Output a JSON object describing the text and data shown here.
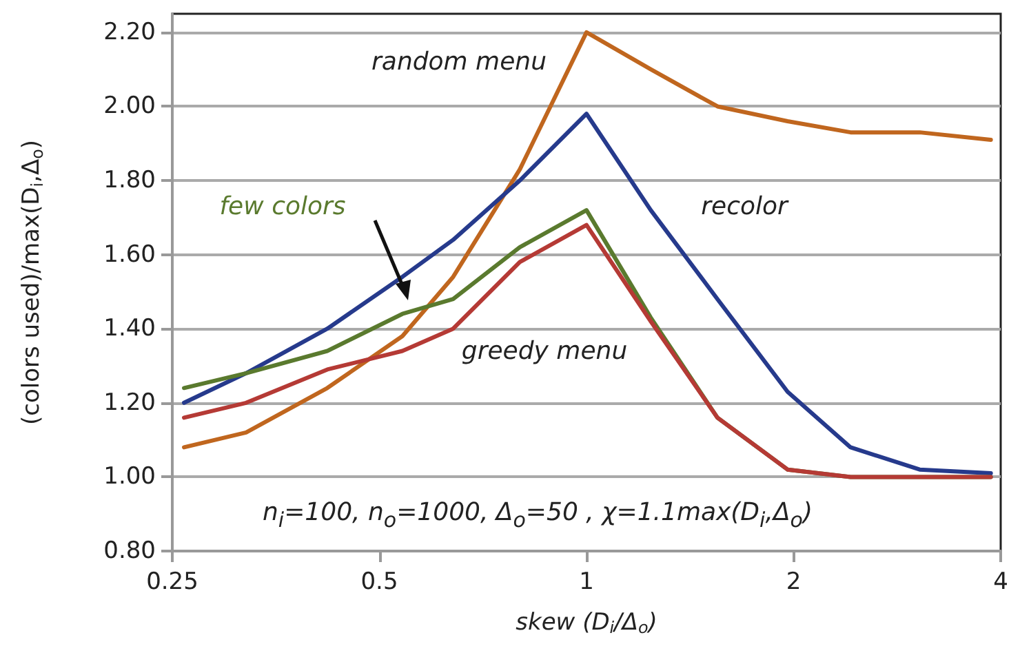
{
  "chart_data": {
    "type": "line",
    "xlabel": "skew (D$_{i}$/Δ$_{o}$)",
    "ylabel": "(colors used)/max(D$_{i}$,Δ$_{o}$)",
    "x": [
      0.26,
      0.32,
      0.42,
      0.54,
      0.64,
      0.8,
      1.0,
      1.24,
      1.55,
      1.96,
      2.42,
      3.05,
      3.87
    ],
    "series": [
      {
        "name": "random menu",
        "color": "#c0661e",
        "values": [
          1.08,
          1.12,
          1.24,
          1.38,
          1.54,
          1.83,
          2.2,
          2.1,
          2.0,
          1.96,
          1.93,
          1.93,
          1.91
        ]
      },
      {
        "name": "recolor",
        "color": "#263a8c",
        "values": [
          1.2,
          1.28,
          1.4,
          1.54,
          1.64,
          1.8,
          1.98,
          1.72,
          1.48,
          1.23,
          1.08,
          1.02,
          1.01
        ]
      },
      {
        "name": "few colors",
        "color": "#5a7a2e",
        "values": [
          1.24,
          1.28,
          1.34,
          1.44,
          1.48,
          1.62,
          1.72,
          1.43,
          1.16,
          1.02,
          1.0,
          1.0,
          1.0
        ]
      },
      {
        "name": "greedy menu",
        "color": "#b53a35",
        "values": [
          1.16,
          1.2,
          1.29,
          1.34,
          1.4,
          1.58,
          1.68,
          1.42,
          1.16,
          1.02,
          1.0,
          1.0,
          1.0
        ]
      }
    ],
    "log": "x",
    "xlim": [
      0.25,
      4
    ],
    "xticks": [
      0.25,
      0.5,
      1,
      2,
      4
    ],
    "ylim": [
      0.8,
      2.25
    ],
    "yticks": [
      {
        "value": 0.8,
        "label": "0.80"
      },
      {
        "value": 1.0,
        "label": "1.00"
      },
      {
        "value": 1.2,
        "label": "1.20"
      },
      {
        "value": 1.4,
        "label": "1.40"
      },
      {
        "value": 1.6,
        "label": "1.60"
      },
      {
        "value": 1.8,
        "label": "1.80"
      },
      {
        "value": 2.0,
        "label": "2.00"
      },
      {
        "value": 2.2,
        "label": "2.20"
      }
    ],
    "grid": "y",
    "legend": false,
    "marker": "none",
    "line_style": "solid",
    "annotations": [
      "n$_{i}$=100, n$_{o}$=1000, Δ$_{o}$=50 , χ=1.1max(D$_{i}$,Δ$_{o}$)"
    ]
  }
}
